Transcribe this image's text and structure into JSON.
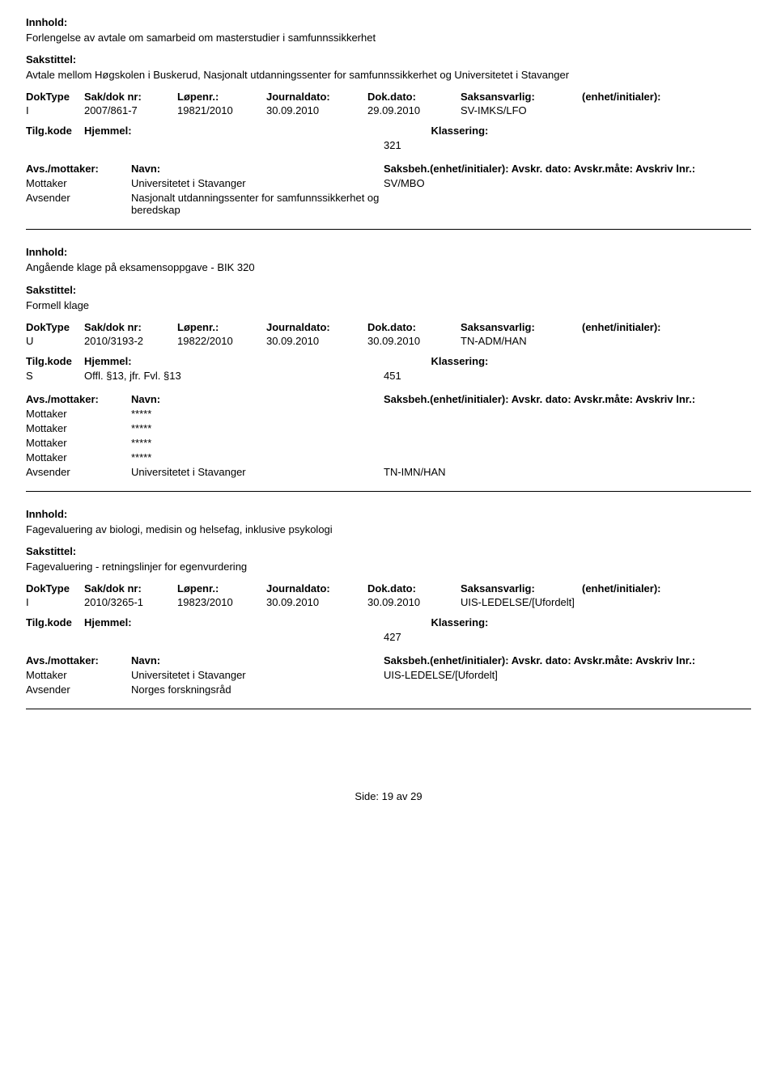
{
  "labels": {
    "innhold": "Innhold:",
    "sakstittel": "Sakstittel:",
    "doktype": "DokType",
    "saknr": "Sak/dok nr:",
    "lopenr": "Løpenr.:",
    "journaldato": "Journaldato:",
    "dokdato": "Dok.dato:",
    "saksansvarlig": "Saksansvarlig:",
    "enhet": "(enhet/initialer):",
    "tilgkode": "Tilg.kode",
    "hjemmel": "Hjemmel:",
    "klassering": "Klassering:",
    "avsmottaker": "Avs./mottaker:",
    "navn": "Navn:",
    "saksbeh": "Saksbeh.(enhet/initialer): Avskr. dato: Avskr.måte: Avskriv lnr.:",
    "mottaker": "Mottaker",
    "avsender": "Avsender",
    "side": "Side:",
    "av": "av"
  },
  "records": [
    {
      "innhold": "Forlengelse av avtale om samarbeid om masterstudier i samfunnssikkerhet",
      "sakstittel": "Avtale mellom Høgskolen i Buskerud, Nasjonalt utdanningssenter for samfunnssikkerhet og Universitetet i Stavanger",
      "doktype": "I",
      "saknr": "2007/861-7",
      "lopenr": "19821/2010",
      "journaldato": "30.09.2010",
      "dokdato": "29.09.2010",
      "saksansvarlig": "SV-IMKS/LFO",
      "tilgkode": "",
      "hjemmel": "",
      "klassering": "321",
      "parties": [
        {
          "role": "Mottaker",
          "name": "Universitetet i Stavanger",
          "saksbeh": "SV/MBO"
        },
        {
          "role": "Avsender",
          "name": "Nasjonalt utdanningssenter for samfunnssikkerhet og beredskap",
          "saksbeh": ""
        }
      ]
    },
    {
      "innhold": "Angående klage på eksamensoppgave - BIK 320",
      "sakstittel": "Formell klage",
      "doktype": "U",
      "saknr": "2010/3193-2",
      "lopenr": "19822/2010",
      "journaldato": "30.09.2010",
      "dokdato": "30.09.2010",
      "saksansvarlig": "TN-ADM/HAN",
      "tilgkode": "S",
      "hjemmel": "Offl. §13, jfr. Fvl. §13",
      "klassering": "451",
      "parties": [
        {
          "role": "Mottaker",
          "name": "*****",
          "saksbeh": ""
        },
        {
          "role": "Mottaker",
          "name": "*****",
          "saksbeh": ""
        },
        {
          "role": "Mottaker",
          "name": "*****",
          "saksbeh": ""
        },
        {
          "role": "Mottaker",
          "name": "*****",
          "saksbeh": ""
        },
        {
          "role": "Avsender",
          "name": "Universitetet i Stavanger",
          "saksbeh": "TN-IMN/HAN"
        }
      ]
    },
    {
      "innhold": "Fagevaluering av biologi, medisin og helsefag, inklusive psykologi",
      "sakstittel": "Fagevaluering - retningslinjer for egenvurdering",
      "doktype": "I",
      "saknr": "2010/3265-1",
      "lopenr": "19823/2010",
      "journaldato": "30.09.2010",
      "dokdato": "30.09.2010",
      "saksansvarlig": "UIS-LEDELSE/[Ufordelt]",
      "tilgkode": "",
      "hjemmel": "",
      "klassering": "427",
      "parties": [
        {
          "role": "Mottaker",
          "name": "Universitetet i Stavanger",
          "saksbeh": "UIS-LEDELSE/[Ufordelt]"
        },
        {
          "role": "Avsender",
          "name": "Norges forskningsråd",
          "saksbeh": ""
        }
      ]
    }
  ],
  "footer": {
    "page": "19",
    "total": "29"
  }
}
